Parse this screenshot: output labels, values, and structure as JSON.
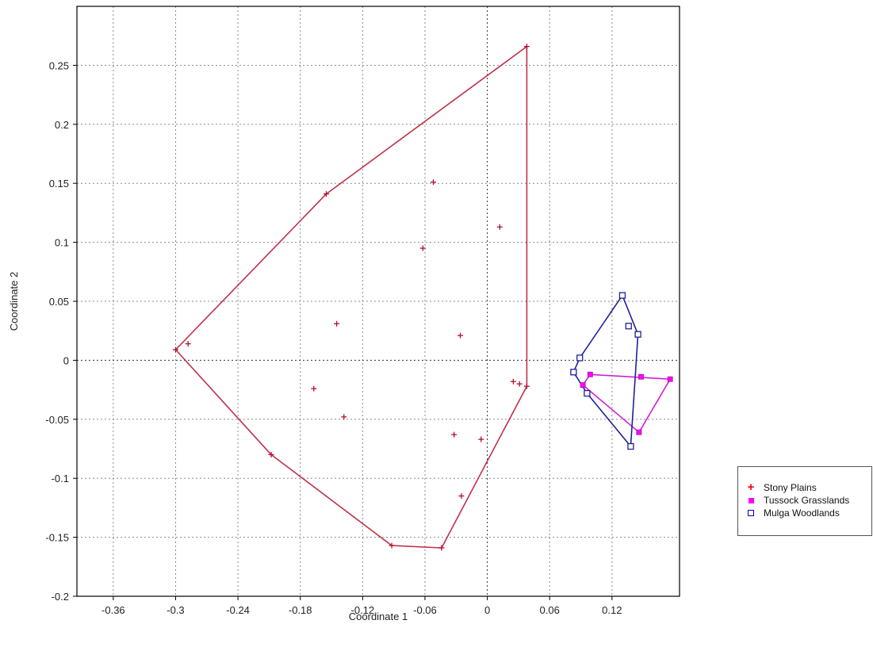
{
  "chart_data": {
    "type": "scatter",
    "xlabel": "Coordinate 1",
    "ylabel": "Coordinate 2",
    "xlim": [
      -0.395,
      0.185
    ],
    "ylim": [
      -0.2,
      0.3
    ],
    "xticks": [
      -0.36,
      -0.3,
      -0.24,
      -0.18,
      -0.12,
      -0.06,
      0,
      0.06,
      0.12
    ],
    "xtick_labels": [
      "-0.36",
      "-0.3",
      "-0.24",
      "-0.18",
      "-0.12",
      "-0.06",
      "0",
      "0.06",
      "0.12"
    ],
    "yticks": [
      -0.2,
      -0.15,
      -0.1,
      -0.05,
      0,
      0.05,
      0.1,
      0.15,
      0.2,
      0.25
    ],
    "ytick_labels": [
      "-0.2",
      "-0.15",
      "-0.1",
      "-0.05",
      "0",
      "0.05",
      "0.1",
      "0.15",
      "0.2",
      "0.25"
    ],
    "grid": true,
    "legend_position": "bottom-right outside",
    "series": [
      {
        "name": "Stony Plains",
        "color": "#ff0000",
        "hull_color": "#c0304a",
        "marker": "plus",
        "points": [
          [
            0.038,
            0.266
          ],
          [
            -0.155,
            0.141
          ],
          [
            -0.052,
            0.151
          ],
          [
            0.012,
            0.113
          ],
          [
            -0.062,
            0.095
          ],
          [
            -0.145,
            0.031
          ],
          [
            -0.026,
            0.021
          ],
          [
            -0.3,
            0.009
          ],
          [
            -0.288,
            0.014
          ],
          [
            -0.167,
            -0.024
          ],
          [
            -0.138,
            -0.048
          ],
          [
            0.025,
            -0.018
          ],
          [
            0.031,
            -0.02
          ],
          [
            0.038,
            -0.022
          ],
          [
            -0.032,
            -0.063
          ],
          [
            -0.006,
            -0.067
          ],
          [
            -0.208,
            -0.08
          ],
          [
            -0.025,
            -0.115
          ],
          [
            -0.092,
            -0.157
          ],
          [
            -0.044,
            -0.159
          ]
        ],
        "hull": [
          [
            0.038,
            0.266
          ],
          [
            0.038,
            -0.022
          ],
          [
            -0.044,
            -0.159
          ],
          [
            -0.092,
            -0.157
          ],
          [
            -0.208,
            -0.08
          ],
          [
            -0.3,
            0.009
          ],
          [
            -0.155,
            0.141
          ]
        ]
      },
      {
        "name": "Tussock Grasslands",
        "color": "#ff00ff",
        "hull_color": "#d020d0",
        "marker": "square-filled",
        "points": [
          [
            0.099,
            -0.012
          ],
          [
            0.148,
            -0.014
          ],
          [
            0.176,
            -0.016
          ],
          [
            0.092,
            -0.021
          ],
          [
            0.146,
            -0.061
          ]
        ],
        "hull": [
          [
            0.099,
            -0.012
          ],
          [
            0.176,
            -0.016
          ],
          [
            0.146,
            -0.061
          ],
          [
            0.092,
            -0.021
          ]
        ]
      },
      {
        "name": "Mulga Woodlands",
        "color": "#0000cc",
        "hull_color": "#20209a",
        "marker": "square-open",
        "points": [
          [
            0.13,
            0.055
          ],
          [
            0.136,
            0.029
          ],
          [
            0.145,
            0.022
          ],
          [
            0.089,
            0.002
          ],
          [
            0.083,
            -0.01
          ],
          [
            0.096,
            -0.028
          ],
          [
            0.138,
            -0.073
          ]
        ],
        "hull": [
          [
            0.13,
            0.055
          ],
          [
            0.145,
            0.022
          ],
          [
            0.138,
            -0.073
          ],
          [
            0.096,
            -0.028
          ],
          [
            0.083,
            -0.01
          ],
          [
            0.089,
            0.002
          ]
        ]
      }
    ]
  }
}
